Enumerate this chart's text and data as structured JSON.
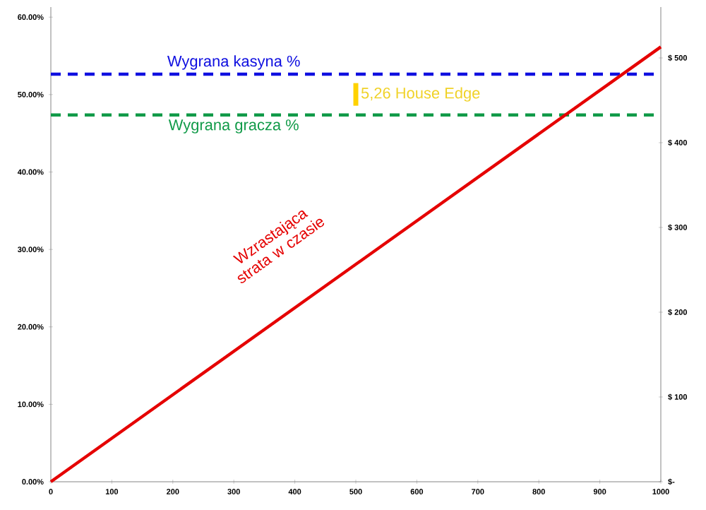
{
  "chart_data": {
    "type": "line",
    "x": [
      0,
      1000
    ],
    "series": [
      {
        "name": "Wzrastająca strata w czasie",
        "color": "#e50000",
        "values": [
          0,
          513
        ],
        "axis": "y2"
      }
    ],
    "xlim": [
      0,
      1000
    ],
    "xticks": [
      0,
      100,
      200,
      300,
      400,
      500,
      600,
      700,
      800,
      900,
      1000
    ],
    "ylim": [
      0,
      61.3
    ],
    "yticks": [
      {
        "value": 0,
        "label": "0.00%"
      },
      {
        "value": 10,
        "label": "10.00%"
      },
      {
        "value": 20,
        "label": "20.00%"
      },
      {
        "value": 30,
        "label": "30.00%"
      },
      {
        "value": 40,
        "label": "40.00%"
      },
      {
        "value": 50,
        "label": "50.00%"
      },
      {
        "value": 60,
        "label": "60.00%"
      }
    ],
    "y2lim": [
      0,
      560
    ],
    "y2ticks": [
      {
        "value": 0,
        "label": "$-"
      },
      {
        "value": 100,
        "label": "$ 100"
      },
      {
        "value": 200,
        "label": "$ 200"
      },
      {
        "value": 300,
        "label": "$ 300"
      },
      {
        "value": 400,
        "label": "$ 400"
      },
      {
        "value": 500,
        "label": "$ 500"
      }
    ],
    "ref_lines": [
      {
        "axis": "y",
        "value": 52.63,
        "label": "Wygrana kasyna %",
        "color": "#1010e0",
        "line_style": "dashed"
      },
      {
        "axis": "y",
        "value": 47.37,
        "label": "Wygrana gracza %",
        "color": "#109a48",
        "line_style": "dashed"
      }
    ],
    "annotations": [
      "5,26 House Edge"
    ],
    "marker": "none",
    "line_style": "solid"
  }
}
